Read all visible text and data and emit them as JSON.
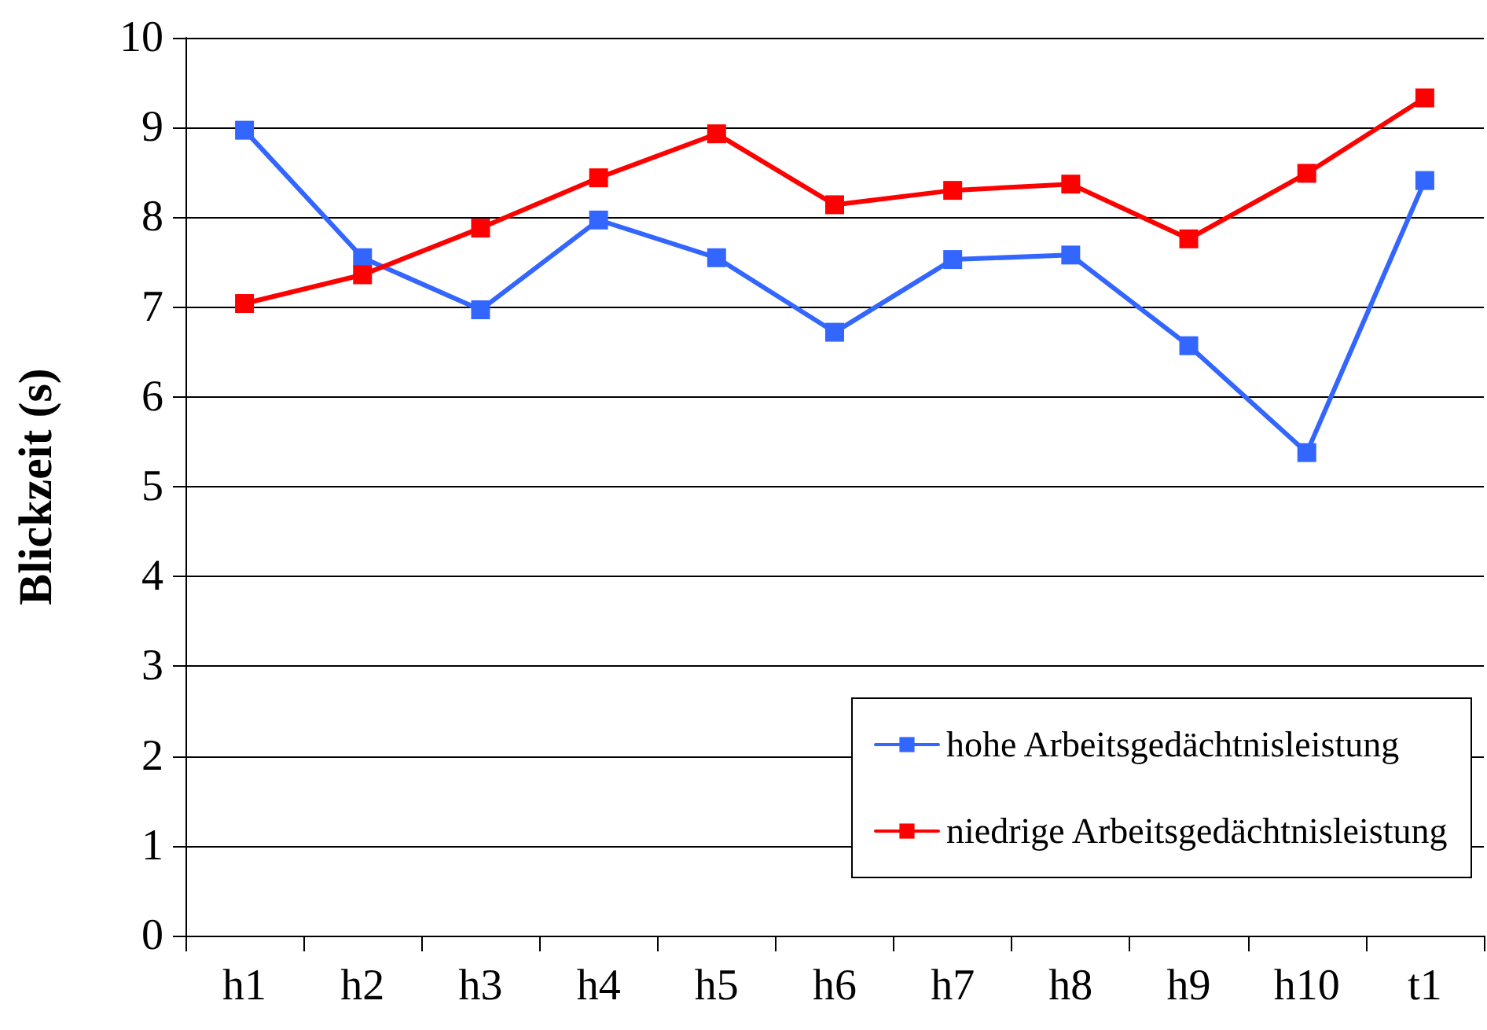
{
  "chart_data": {
    "type": "line",
    "ylabel": "Blickzeit (s)",
    "categories": [
      "h1",
      "h2",
      "h3",
      "h4",
      "h5",
      "h6",
      "h7",
      "h8",
      "h9",
      "h10",
      "t1"
    ],
    "series": [
      {
        "name": "hohe Arbeitsgedächtnisleistung",
        "color": "#3366ff",
        "values": [
          8.97,
          7.55,
          6.97,
          7.97,
          7.55,
          6.72,
          7.53,
          7.58,
          6.57,
          5.38,
          8.41
        ]
      },
      {
        "name": "niedrige Arbeitsgedächtnisleistung",
        "color": "#ff0000",
        "values": [
          7.04,
          7.36,
          7.88,
          8.44,
          8.93,
          8.14,
          8.3,
          8.37,
          7.76,
          8.49,
          9.33
        ]
      }
    ],
    "ylim": [
      0,
      10
    ],
    "yticks": [
      0,
      1,
      2,
      3,
      4,
      5,
      6,
      7,
      8,
      9,
      10
    ],
    "grid": "y",
    "legend": "bottom right",
    "marker": "square",
    "line_style": "solid"
  }
}
